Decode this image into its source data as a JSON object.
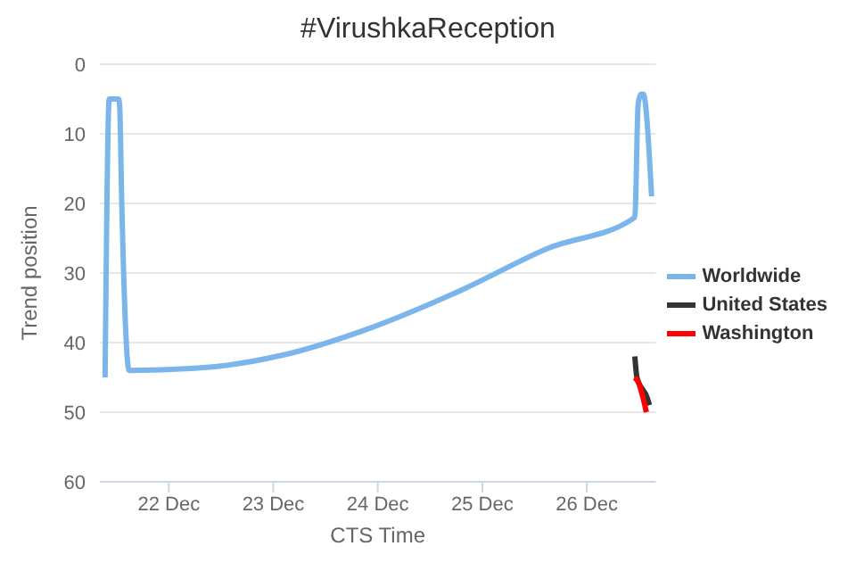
{
  "chart_data": {
    "type": "line",
    "title": "#VirushkaReception",
    "xlabel": "CTS Time",
    "ylabel": "Trend position",
    "xlim": [
      "--12-21T08:10",
      "--12-26T15:50"
    ],
    "xticks": [
      {
        "value": "--12-22",
        "label": "22 Dec"
      },
      {
        "value": "--12-23",
        "label": "23 Dec"
      },
      {
        "value": "--12-24",
        "label": "24 Dec"
      },
      {
        "value": "--12-25",
        "label": "25 Dec"
      },
      {
        "value": "--12-26",
        "label": "26 Dec"
      }
    ],
    "ylim": [
      60,
      0
    ],
    "yticks": [
      0,
      10,
      20,
      30,
      40,
      50,
      60
    ],
    "grid": "y",
    "legend": "right",
    "marker": "none",
    "line_style": "solid",
    "series": [
      {
        "name": "Worldwide",
        "color": "#7cb5ec",
        "x": [
          "--12-21T09:22",
          "--12-21T10:19",
          "--12-21T12:29",
          "--12-21T12:43",
          "--12-21T13:12",
          "--12-21T14:53",
          "--12-22T06:00",
          "--12-23T02:10",
          "--12-23T22:19",
          "--12-24T18:43",
          "--12-25T14:53",
          "--12-26T11:02",
          "--12-26T11:46",
          "--12-26T12:00",
          "--12-26T12:29",
          "--12-26T12:58",
          "--12-26T14:53"
        ],
        "values": [
          45,
          5,
          5,
          6,
          20,
          44,
          43.7,
          41.8,
          37.9,
          32.6,
          26.5,
          22,
          6,
          5,
          4.3,
          4.3,
          19
        ]
      },
      {
        "name": "United States",
        "color": "#333333",
        "x": [
          "--12-26T11:02",
          "--12-26T11:31",
          "--12-26T13:55",
          "--12-26T14:24"
        ],
        "values": [
          42,
          45,
          48,
          49
        ]
      },
      {
        "name": "Washington",
        "color": "#ff0000",
        "x": [
          "--12-26T11:02",
          "--12-26T11:46",
          "--12-26T13:41"
        ],
        "values": [
          45,
          45.6,
          50
        ]
      }
    ]
  }
}
